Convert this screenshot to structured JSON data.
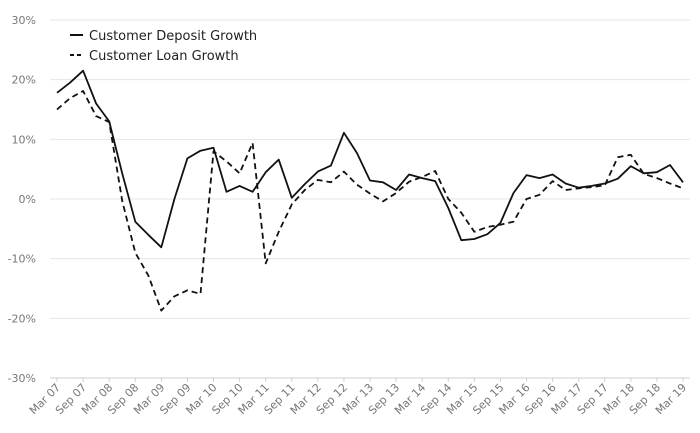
{
  "chart_data": {
    "type": "line",
    "title": "",
    "xlabel": "",
    "ylabel": "",
    "ylim": [
      -30,
      30
    ],
    "y_ticks": [
      30,
      20,
      10,
      0,
      -10,
      -20,
      -30
    ],
    "y_tick_labels": [
      "30%",
      "20%",
      "10%",
      "0%",
      "-10%",
      "-20%",
      "-30%"
    ],
    "x_tick_labels": [
      "Mar 07",
      "Sep 07",
      "Mar 08",
      "Sep 08",
      "Mar 09",
      "Sep 09",
      "Mar 10",
      "Sep 10",
      "Mar 11",
      "Sep 11",
      "Mar 12",
      "Sep 12",
      "Mar 13",
      "Sep 13",
      "Mar 14",
      "Sep 14",
      "Mar 15",
      "Sep 15",
      "Mar 16",
      "Sep 16",
      "Mar 17",
      "Sep 17",
      "Mar 18",
      "Sep 18",
      "Mar 19"
    ],
    "grid": true,
    "legend_position": "top-left",
    "series": [
      {
        "name": "Customer Deposit Growth",
        "style": "solid",
        "color": "#111111",
        "values": [
          17.8,
          19.5,
          21.5,
          16,
          13,
          4.3,
          -3.8,
          -6,
          -8.1,
          0,
          6.8,
          8.1,
          8.6,
          1.2,
          2.2,
          1.2,
          4.5,
          6.6,
          0.2,
          2.5,
          4.6,
          5.6,
          11.1,
          7.7,
          3.1,
          2.8,
          1.5,
          4.1,
          3.5,
          3,
          -1.5,
          -6.9,
          -6.7,
          -5.9,
          -4,
          1,
          4,
          3.5,
          4.1,
          2.6,
          1.9,
          2.2,
          2.6,
          3.4,
          5.5,
          4.3,
          4.5,
          5.7,
          2.8
        ]
      },
      {
        "name": "Customer Loan Growth",
        "style": "dashed",
        "color": "#111111",
        "values": [
          15,
          16.9,
          18.1,
          13.9,
          12.9,
          -0.3,
          -9,
          -12.8,
          -18.7,
          -16.3,
          -15.3,
          -15.9,
          8,
          6.3,
          4.3,
          9.4,
          -10.8,
          -5.5,
          -0.9,
          1.5,
          3.2,
          2.8,
          4.6,
          2.4,
          0.9,
          -0.4,
          1,
          2.9,
          3.7,
          4.7,
          0,
          -2.3,
          -5.5,
          -4.7,
          -4.3,
          -3.8,
          0,
          0.7,
          3,
          1.5,
          1.8,
          2,
          2.3,
          7,
          7.4,
          4.2,
          3.5,
          2.6,
          1.8
        ]
      }
    ]
  }
}
